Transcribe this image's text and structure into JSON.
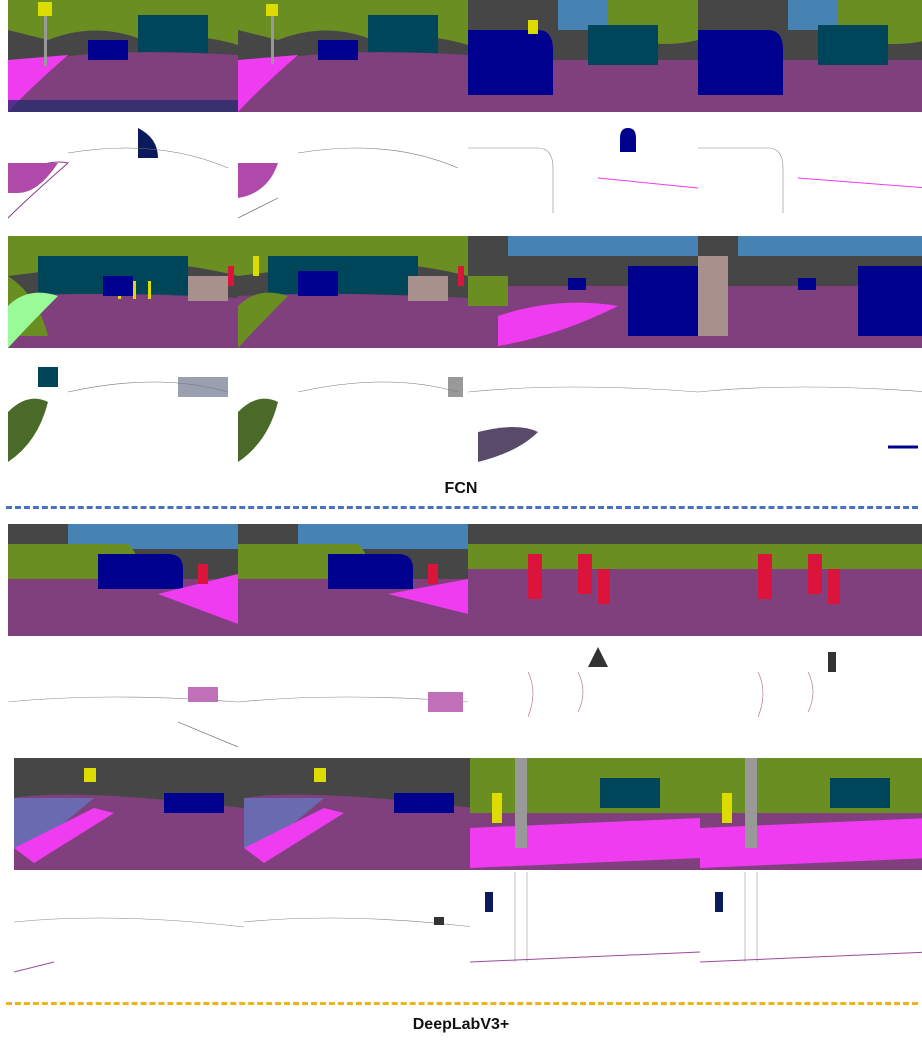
{
  "colors": {
    "road": "#80407e",
    "sidewalk": "#f03cf0",
    "vegetation": "#6b8e23",
    "building": "#464646",
    "sky": "#4682b4",
    "car": "#00008e",
    "truck": "#00465a",
    "pole": "#999999",
    "sign": "#dcdc00",
    "light": "#faaa1e",
    "person": "#dc143c",
    "terrain": "#98fb98",
    "wall": "#a8908c",
    "error_bg": "#ffffff",
    "fcn_divider": "#4a72c2",
    "deeplab_divider": "#f0b418"
  },
  "sections": [
    {
      "label": "FCN"
    },
    {
      "label": "DeepLabV3+"
    }
  ]
}
